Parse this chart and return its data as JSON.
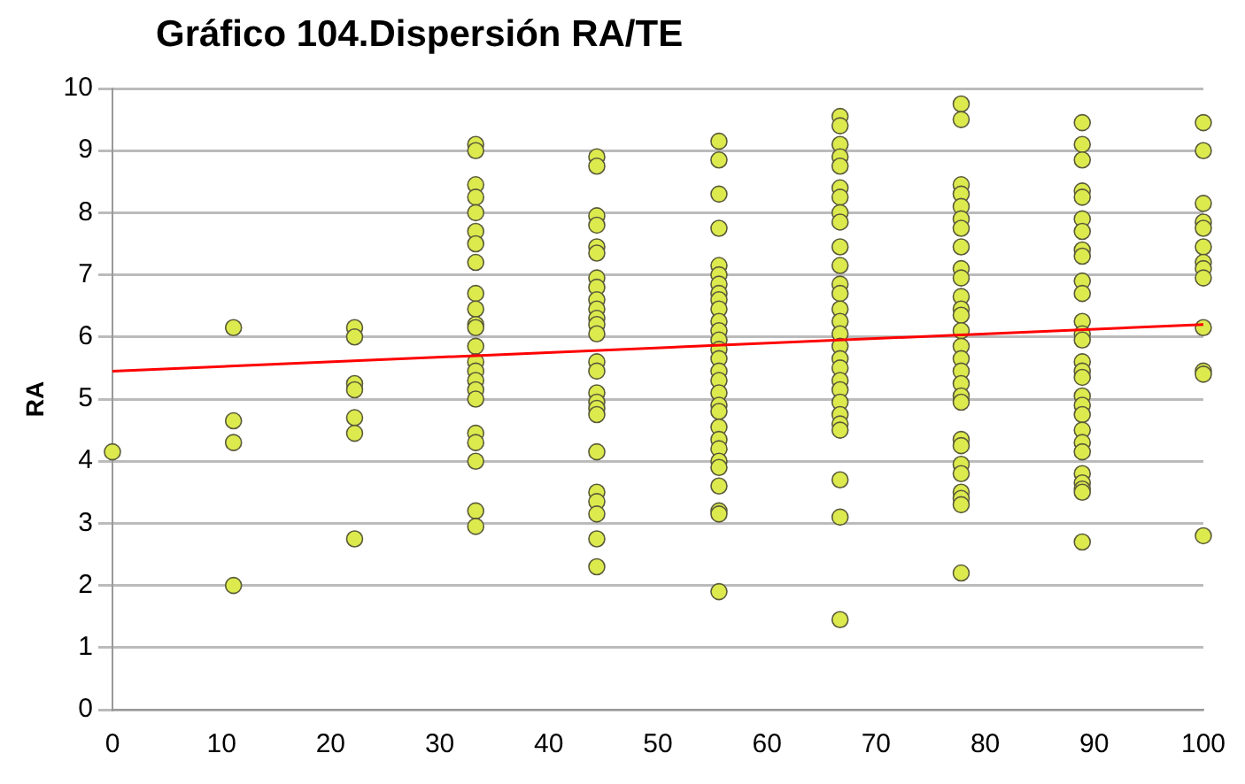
{
  "chart_data": {
    "type": "scatter",
    "title": "Gráfico 104.Dispersión RA/TE",
    "ylabel": "RA",
    "xlim": [
      0,
      100
    ],
    "xticks": [
      0,
      10,
      20,
      30,
      40,
      50,
      60,
      70,
      80,
      90,
      100
    ],
    "ylim": [
      0,
      10
    ],
    "yticks": [
      0,
      1,
      2,
      3,
      4,
      5,
      6,
      7,
      8,
      9,
      10
    ],
    "grid": "y",
    "legend": false,
    "marker": "circle",
    "series": [
      {
        "type": "scatter",
        "color": "#dcea4e",
        "x": [
          0,
          11.1,
          11.1,
          11.1,
          11.1,
          22.2,
          22.2,
          22.2,
          22.2,
          22.2,
          22.2,
          22.2,
          33.3,
          33.3,
          33.3,
          33.3,
          33.3,
          33.3,
          33.3,
          33.3,
          33.3,
          33.3,
          33.3,
          33.3,
          33.3,
          33.3,
          33.3,
          33.3,
          33.3,
          33.3,
          33.3,
          33.3,
          33.3,
          33.3,
          33.3,
          44.4,
          44.4,
          44.4,
          44.4,
          44.4,
          44.4,
          44.4,
          44.4,
          44.4,
          44.4,
          44.4,
          44.4,
          44.4,
          44.4,
          44.4,
          44.4,
          44.4,
          44.4,
          44.4,
          44.4,
          44.4,
          44.4,
          44.4,
          44.4,
          44.4,
          55.6,
          55.6,
          55.6,
          55.6,
          55.6,
          55.6,
          55.6,
          55.6,
          55.6,
          55.6,
          55.6,
          55.6,
          55.6,
          55.6,
          55.6,
          55.6,
          55.6,
          55.6,
          55.6,
          55.6,
          55.6,
          55.6,
          55.6,
          55.6,
          55.6,
          55.6,
          55.6,
          55.6,
          55.6,
          66.7,
          66.7,
          66.7,
          66.7,
          66.7,
          66.7,
          66.7,
          66.7,
          66.7,
          66.7,
          66.7,
          66.7,
          66.7,
          66.7,
          66.7,
          66.7,
          66.7,
          66.7,
          66.7,
          66.7,
          66.7,
          66.7,
          66.7,
          66.7,
          66.7,
          66.7,
          66.7,
          66.7,
          77.8,
          77.8,
          77.8,
          77.8,
          77.8,
          77.8,
          77.8,
          77.8,
          77.8,
          77.8,
          77.8,
          77.8,
          77.8,
          77.8,
          77.8,
          77.8,
          77.8,
          77.8,
          77.8,
          77.8,
          77.8,
          77.8,
          77.8,
          77.8,
          77.8,
          77.8,
          77.8,
          77.8,
          88.9,
          88.9,
          88.9,
          88.9,
          88.9,
          88.9,
          88.9,
          88.9,
          88.9,
          88.9,
          88.9,
          88.9,
          88.9,
          88.9,
          88.9,
          88.9,
          88.9,
          88.9,
          88.9,
          88.9,
          88.9,
          88.9,
          88.9,
          88.9,
          88.9,
          88.9,
          88.9,
          88.9,
          100,
          100,
          100,
          100,
          100,
          100,
          100,
          100,
          100,
          100,
          100,
          100,
          100
        ],
        "values": [
          4.15,
          6.15,
          4.65,
          4.3,
          2.0,
          6.15,
          6.0,
          5.25,
          5.15,
          4.7,
          4.45,
          2.75,
          9.1,
          9.0,
          8.45,
          8.25,
          8.0,
          7.7,
          7.5,
          7.2,
          6.7,
          6.45,
          6.2,
          6.15,
          5.85,
          5.6,
          5.45,
          5.3,
          5.15,
          5.0,
          4.45,
          4.3,
          4.0,
          3.2,
          2.95,
          8.9,
          8.75,
          7.95,
          7.8,
          7.45,
          7.35,
          6.95,
          6.8,
          6.6,
          6.45,
          6.3,
          6.2,
          6.05,
          5.6,
          5.45,
          5.1,
          4.95,
          4.85,
          4.75,
          4.15,
          3.5,
          3.35,
          3.15,
          2.75,
          2.3,
          9.15,
          8.85,
          8.3,
          7.75,
          7.15,
          7.0,
          6.85,
          6.7,
          6.6,
          6.45,
          6.25,
          6.1,
          5.95,
          5.8,
          5.65,
          5.45,
          5.3,
          5.1,
          4.9,
          4.8,
          4.55,
          4.35,
          4.2,
          4.0,
          3.9,
          3.6,
          3.2,
          3.15,
          1.9,
          9.55,
          9.4,
          9.1,
          8.9,
          8.75,
          8.4,
          8.25,
          8.0,
          7.85,
          7.45,
          7.15,
          6.85,
          6.7,
          6.45,
          6.25,
          6.05,
          5.85,
          5.65,
          5.5,
          5.3,
          5.15,
          4.95,
          4.75,
          4.6,
          4.5,
          3.7,
          3.1,
          1.45,
          9.75,
          9.5,
          8.45,
          8.3,
          8.1,
          7.9,
          7.75,
          7.45,
          7.1,
          6.95,
          6.65,
          6.45,
          6.35,
          6.1,
          5.85,
          5.65,
          5.45,
          5.25,
          5.05,
          4.95,
          4.35,
          4.25,
          3.95,
          3.8,
          3.5,
          3.4,
          3.3,
          2.2,
          9.45,
          9.1,
          8.85,
          8.35,
          8.25,
          7.9,
          7.7,
          7.4,
          7.3,
          6.9,
          6.7,
          6.25,
          6.05,
          5.95,
          5.6,
          5.45,
          5.35,
          5.05,
          4.9,
          4.75,
          4.5,
          4.3,
          4.15,
          3.8,
          3.65,
          3.55,
          3.5,
          2.7,
          9.45,
          9.0,
          8.15,
          7.85,
          7.75,
          7.45,
          7.2,
          7.1,
          6.95,
          6.15,
          5.45,
          5.4,
          2.8
        ]
      },
      {
        "type": "line",
        "color": "#ff0000",
        "marker": "none",
        "x": [
          0,
          100
        ],
        "values": [
          5.45,
          6.2
        ]
      }
    ]
  }
}
